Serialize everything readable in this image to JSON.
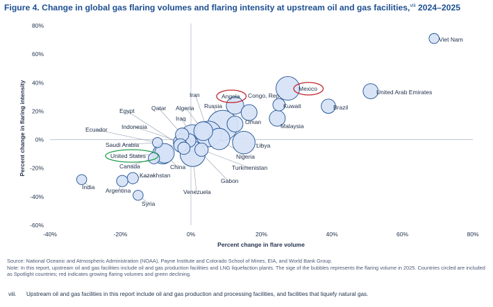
{
  "figure": {
    "title": "Figure 4. Change in global gas flaring volumes and flaring intensity at upstream oil and gas facilities,",
    "title_marker": "viii",
    "title_years": " 2024–2025"
  },
  "notes": {
    "source": "Source: National Oceanic and Atmospheric Administration (NOAA), Payne Institute and Colorado School of Mines, EIA, and World Bank Group.",
    "note": "Note: In this report, upstream oil and gas facilities include oil and gas production facilities and LNG liquefaction plants. The sige of the bubbles represents the flaring volume in 2025. Countries circled are included as Spotlight countries; red indicates growing flaring volumes and green declining."
  },
  "footnote": {
    "marker": "viii.",
    "text": "Upstream oil and gas facilities in this report include oil and gas production and processing facilities, and facilities that liquefy natural gas."
  },
  "chart_data": {
    "type": "scatter",
    "subtype": "bubble",
    "xlabel": "Percent change in flare volume",
    "ylabel": "Percent change in flaring intensity",
    "xlim": [
      -40,
      80
    ],
    "ylim": [
      -60,
      80
    ],
    "x_ticks": [
      "-40%",
      "-20%",
      "0%",
      "20%",
      "40%",
      "60%",
      "80%"
    ],
    "y_ticks": [
      "80%",
      "60%",
      "40%",
      "20%",
      "0%",
      "-20%",
      "-40%",
      "-60%"
    ],
    "grid": false,
    "bubble_fill": "#d6e2f6",
    "bubble_stroke": "#1d4f91",
    "spotlight_colors": {
      "growing": "#c0262d",
      "declining": "#1e9e4a"
    },
    "points": [
      {
        "label": "Viet Nam",
        "x": 69,
        "y": 71,
        "size": 0.4
      },
      {
        "label": "United Arab Emirates",
        "x": 51,
        "y": 34,
        "size": 0.9
      },
      {
        "label": "Brazil",
        "x": 39,
        "y": 23.5,
        "size": 0.8
      },
      {
        "label": "Mexico",
        "x": 27.5,
        "y": 36,
        "size": 2.2,
        "spotlight": "growing"
      },
      {
        "label": "Kuwait",
        "x": 25,
        "y": 24.5,
        "size": 0.6
      },
      {
        "label": "Malaysia",
        "x": 24.5,
        "y": 15,
        "size": 1.0
      },
      {
        "label": "Congo, Rep.",
        "x": 16.5,
        "y": 19,
        "size": 1.0
      },
      {
        "label": "Oman",
        "x": 12.5,
        "y": 11,
        "size": 1.0
      },
      {
        "label": "Angola",
        "x": 12.5,
        "y": 24,
        "size": 1.2,
        "spotlight": "growing"
      },
      {
        "label": "Libya",
        "x": 15,
        "y": -2,
        "size": 2.0
      },
      {
        "label": "Russia",
        "x": 9,
        "y": 10,
        "size": 3.6
      },
      {
        "label": "Nigeria",
        "x": 8,
        "y": 0.5,
        "size": 1.8
      },
      {
        "label": "Iran",
        "x": 5,
        "y": 4,
        "size": 2.6
      },
      {
        "label": "Algeria",
        "x": 3.5,
        "y": 6,
        "size": 1.4
      },
      {
        "label": "Turkmenistan",
        "x": 3,
        "y": -7,
        "size": 0.7
      },
      {
        "label": "Iraq",
        "x": 0.5,
        "y": 1,
        "size": 2.9
      },
      {
        "label": "Venezuela",
        "x": 0.5,
        "y": -10,
        "size": 2.5
      },
      {
        "label": "Gabon",
        "x": -0.5,
        "y": -0.5,
        "size": 0.7
      },
      {
        "label": "Qatar",
        "x": -2.5,
        "y": 3.5,
        "size": 0.7
      },
      {
        "label": "Egypt",
        "x": -3,
        "y": -4,
        "size": 0.7
      },
      {
        "label": "Indonesia",
        "x": -2.5,
        "y": -2,
        "size": 1.2
      },
      {
        "label": "Ecuador",
        "x": -2,
        "y": -6,
        "size": 0.6
      },
      {
        "label": "Saudi Arabia",
        "x": -9.5,
        "y": -2,
        "size": 0.4
      },
      {
        "label": "United States",
        "x": -8,
        "y": -10,
        "size": 1.6,
        "spotlight": "declining"
      },
      {
        "label": "Canada",
        "x": -10.5,
        "y": -13,
        "size": 0.5
      },
      {
        "label": "China",
        "x": -7.5,
        "y": -9.5,
        "size": 1.5
      },
      {
        "label": "Kazakhstan",
        "x": -16.5,
        "y": -27,
        "size": 0.5
      },
      {
        "label": "Argentina",
        "x": -19.5,
        "y": -29,
        "size": 0.5
      },
      {
        "label": "India",
        "x": -31,
        "y": -28,
        "size": 0.4
      },
      {
        "label": "Syria",
        "x": -15,
        "y": -39,
        "size": 0.4
      }
    ]
  }
}
